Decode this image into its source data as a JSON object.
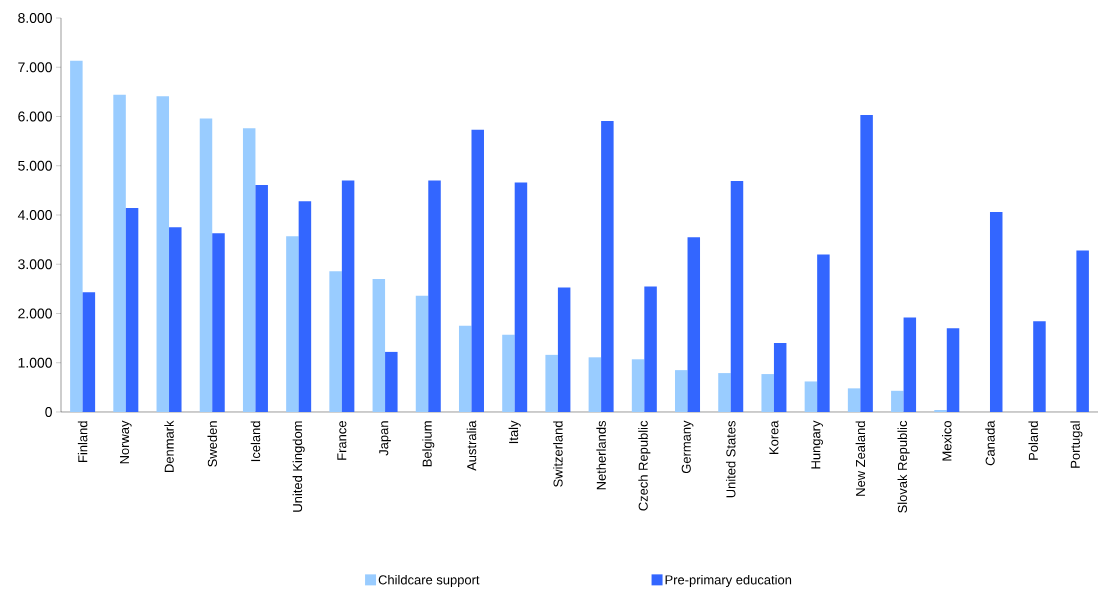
{
  "chart_data": {
    "type": "bar",
    "categories": [
      "Finland",
      "Norway",
      "Denmark",
      "Sweden",
      "Iceland",
      "United Kingdom",
      "France",
      "Japan",
      "Belgium",
      "Australia",
      "Italy",
      "Switzerland",
      "Netherlands",
      "Czech Republic",
      "Germany",
      "United States",
      "Korea",
      "Hungary",
      "New Zealand",
      "Slovak Republic",
      "Mexico",
      "Canada",
      "Poland",
      "Portugal"
    ],
    "series": [
      {
        "name": "Childcare support",
        "color": "#99ccff",
        "values": [
          7130,
          6440,
          6410,
          5960,
          5760,
          3570,
          2860,
          2700,
          2360,
          1750,
          1570,
          1160,
          1110,
          1070,
          850,
          790,
          770,
          620,
          480,
          430,
          40,
          null,
          null,
          null
        ]
      },
      {
        "name": "Pre-primary education",
        "color": "#3366ff",
        "values": [
          2430,
          4140,
          3750,
          3630,
          4610,
          4280,
          4700,
          1220,
          4700,
          5730,
          4660,
          2530,
          5910,
          2550,
          3550,
          4690,
          1400,
          3200,
          6030,
          1920,
          1700,
          4060,
          1840,
          3280
        ]
      }
    ],
    "ylim": [
      0,
      8000
    ],
    "yticks": [
      {
        "value": 0,
        "label": "0"
      },
      {
        "value": 1000,
        "label": "1.000"
      },
      {
        "value": 2000,
        "label": "2.000"
      },
      {
        "value": 3000,
        "label": "3.000"
      },
      {
        "value": 4000,
        "label": "4.000"
      },
      {
        "value": 5000,
        "label": "5.000"
      },
      {
        "value": 6000,
        "label": "6.000"
      },
      {
        "value": 7000,
        "label": "7.000"
      },
      {
        "value": 8000,
        "label": "8.000"
      }
    ],
    "grid": false,
    "legend": "bottom"
  }
}
